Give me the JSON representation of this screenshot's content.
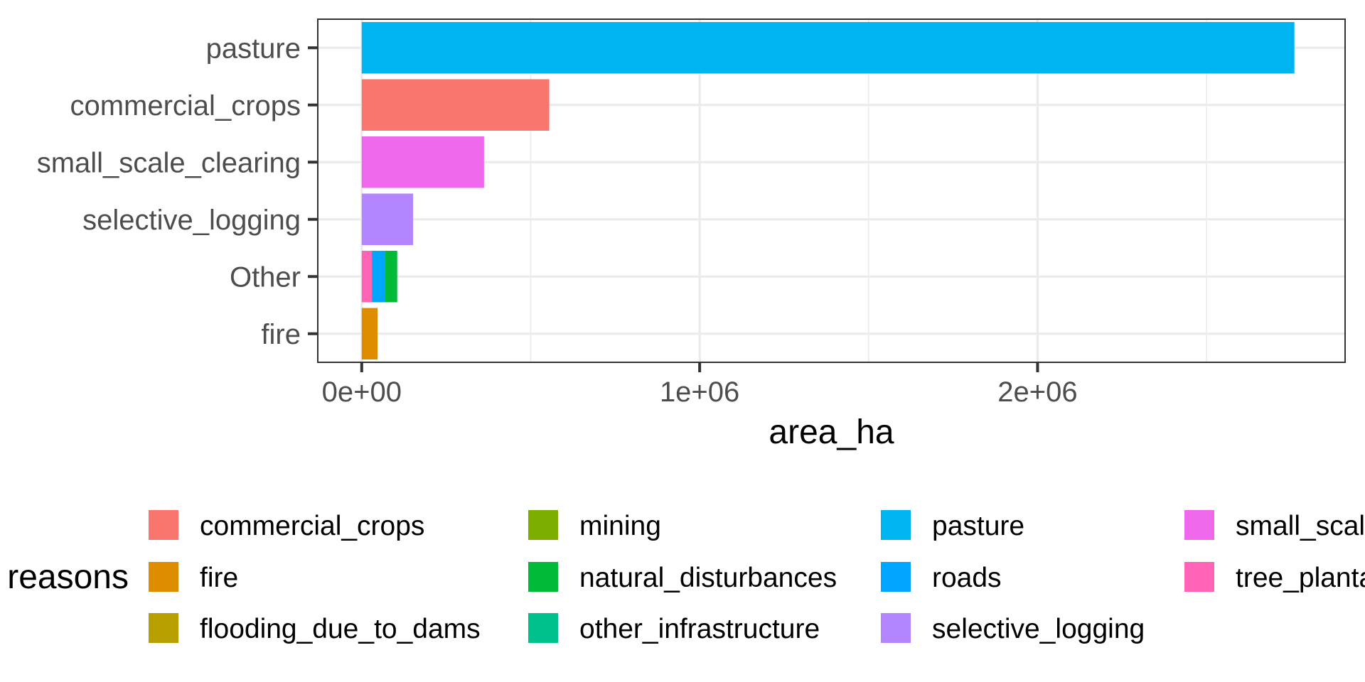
{
  "chart_data": {
    "type": "bar",
    "orientation": "horizontal",
    "stacked": true,
    "xlabel": "area_ha",
    "ylabel": "",
    "xlim": [
      -130000,
      2910000
    ],
    "x_ticks": [
      {
        "value": 0,
        "label": "0e+00"
      },
      {
        "value": 1000000,
        "label": "1e+06"
      },
      {
        "value": 2000000,
        "label": "2e+06"
      }
    ],
    "grid": true,
    "categories": [
      "pasture",
      "commercial_crops",
      "small_scale_clearing",
      "selective_logging",
      "Other",
      "fire"
    ],
    "segments": [
      {
        "category": "pasture",
        "reason": "pasture",
        "value": 2760000
      },
      {
        "category": "commercial_crops",
        "reason": "commercial_crops",
        "value": 555000
      },
      {
        "category": "small_scale_clearing",
        "reason": "small_scale_clearing",
        "value": 362000
      },
      {
        "category": "selective_logging",
        "reason": "selective_logging",
        "value": 152000
      },
      {
        "category": "Other",
        "reason": "tree_plantations",
        "value": 30000
      },
      {
        "category": "Other",
        "reason": "roads",
        "value": 38000
      },
      {
        "category": "Other",
        "reason": "natural_disturbances",
        "value": 37000
      },
      {
        "category": "fire",
        "reason": "fire",
        "value": 47000
      }
    ],
    "legend": {
      "title": "reasons",
      "position": "bottom",
      "entries": [
        {
          "label": "commercial_crops",
          "color": "#F8766D"
        },
        {
          "label": "fire",
          "color": "#DE8C00"
        },
        {
          "label": "flooding_due_to_dams",
          "color": "#B79F00"
        },
        {
          "label": "mining",
          "color": "#7CAE00"
        },
        {
          "label": "natural_disturbances",
          "color": "#00BA38"
        },
        {
          "label": "other_infrastructure",
          "color": "#00C08B"
        },
        {
          "label": "pasture",
          "color": "#00B4F0"
        },
        {
          "label": "roads",
          "color": "#00A5FF"
        },
        {
          "label": "selective_logging",
          "color": "#B385FF"
        },
        {
          "label": "small_scale_clearing",
          "color": "#EF67EB"
        },
        {
          "label": "tree_plantations",
          "color": "#FF63B6"
        }
      ]
    }
  }
}
